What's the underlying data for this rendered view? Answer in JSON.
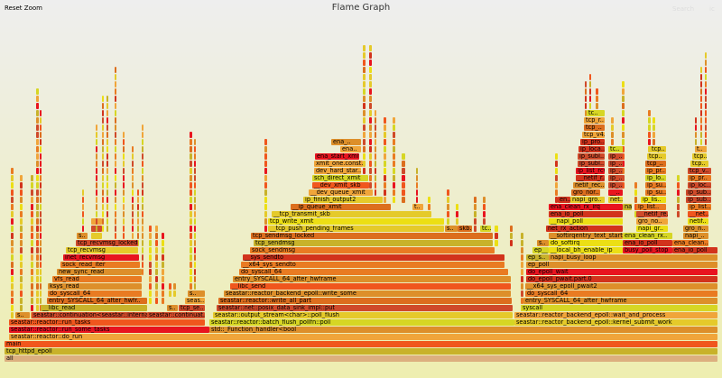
{
  "header": {
    "reset_zoom": "Reset Zoom",
    "title": "Flame Graph",
    "search": "Search",
    "ic": "ic"
  },
  "chart_data": {
    "type": "flamegraph",
    "title": "Flame Graph",
    "total_samples": 790,
    "palette": [
      "#e8141f",
      "#f0561d",
      "#e97b22",
      "#dd8f2a",
      "#f0a53a",
      "#e5ca2a",
      "#ecdf14",
      "#d6d624",
      "#cf4a2a",
      "#d2331c",
      "#dc6e1e",
      "#c8b22a"
    ],
    "frames": [
      [
        0,
        0,
        790,
        "all"
      ],
      [
        1,
        0,
        790,
        "tcp_httpd_epoll"
      ],
      [
        2,
        0,
        790,
        "main"
      ],
      [
        3,
        5,
        790,
        "seastar::reactor::do_run"
      ],
      [
        4,
        5,
        227,
        "seastar::reactor::run_some_tasks"
      ],
      [
        4,
        227,
        790,
        "std::_Function_handler<bool"
      ],
      [
        5,
        5,
        222,
        "seastar::reactor::run_tasks"
      ],
      [
        5,
        227,
        565,
        "seastar::reactor::batch_flush_pollfn::poll"
      ],
      [
        5,
        565,
        790,
        "seastar::reactor_backend_epoll::kernel_submit_work"
      ],
      [
        6,
        12,
        28,
        "s.."
      ],
      [
        6,
        30,
        158,
        "seastar::continuation<seastar::internal..."
      ],
      [
        6,
        158,
        222,
        "seastar::continuat.."
      ],
      [
        6,
        231,
        563,
        "seastar::output_stream<char>::poll_flush"
      ],
      [
        6,
        565,
        790,
        "seastar::reactor_backend_epoll::wait_and_process"
      ],
      [
        7,
        40,
        158,
        "__libc_read"
      ],
      [
        7,
        180,
        192,
        "s.."
      ],
      [
        7,
        193,
        222,
        "tcp_se.."
      ],
      [
        7,
        235,
        563,
        "seastar::net::posix_data_sink_impl::put"
      ],
      [
        7,
        572,
        790,
        "syscall"
      ],
      [
        8,
        47,
        158,
        "entry_SYSCALL_64_after_hwfr.."
      ],
      [
        8,
        200,
        222,
        "seas.."
      ],
      [
        8,
        237,
        562,
        "seastar::reactor::write_all_part"
      ],
      [
        8,
        575,
        790,
        "entry_SYSCALL_64_after_hwframe"
      ],
      [
        9,
        48,
        152,
        "do_syscall_64"
      ],
      [
        9,
        203,
        222,
        "s.."
      ],
      [
        9,
        243,
        561,
        "seastar::reactor_backend_epoll::write_some"
      ],
      [
        9,
        577,
        790,
        "do_syscall_64"
      ],
      [
        10,
        48,
        152,
        "ksys_read"
      ],
      [
        10,
        250,
        561,
        "__libc_send"
      ],
      [
        10,
        577,
        790,
        "__x64_sys_epoll_pwait2"
      ],
      [
        11,
        53,
        152,
        "vfs_read"
      ],
      [
        11,
        253,
        561,
        "entry_SYSCALL_64_after_hwframe"
      ],
      [
        11,
        578,
        790,
        "do_epoll_pwait.part.0"
      ],
      [
        12,
        58,
        152,
        "new_sync_read"
      ],
      [
        12,
        260,
        558,
        "do_syscall_64"
      ],
      [
        12,
        578,
        790,
        "do_epoll_wait"
      ],
      [
        13,
        62,
        150,
        "sock_read_iter"
      ],
      [
        13,
        262,
        554,
        "__x64_sys_sendto"
      ],
      [
        13,
        578,
        790,
        "ep_poll"
      ],
      [
        14,
        65,
        149,
        "inet_recvmsg"
      ],
      [
        14,
        264,
        554,
        "__sys_sendto"
      ],
      [
        14,
        578,
        603,
        "ep_s.."
      ],
      [
        14,
        603,
        790,
        "napi_busy_loop"
      ],
      [
        15,
        68,
        148,
        "tcp_recvmsg"
      ],
      [
        15,
        272,
        543,
        "sock_sendmsg"
      ],
      [
        15,
        585,
        603,
        "ep__"
      ],
      [
        15,
        603,
        685,
        "__local_bh_enable_ip"
      ],
      [
        15,
        685,
        740,
        "busy_poll_stop"
      ],
      [
        15,
        740,
        790,
        "ena_io_poll"
      ],
      [
        16,
        79,
        148,
        "tcp_recvmsg_locked"
      ],
      [
        16,
        276,
        541,
        "tcp_sendmsg"
      ],
      [
        16,
        590,
        603,
        "s.."
      ],
      [
        16,
        603,
        685,
        "do_softirq"
      ],
      [
        16,
        685,
        740,
        "ena_io_poll"
      ],
      [
        16,
        740,
        780,
        "ena_clean.."
      ],
      [
        17,
        80,
        92,
        "s.."
      ],
      [
        17,
        273,
        541,
        "tcp_sendmsg_locked"
      ],
      [
        17,
        603,
        685,
        "__softirqentry_text_start"
      ],
      [
        17,
        685,
        740,
        "ena_clean_rx.."
      ],
      [
        17,
        752,
        780,
        "napi_.."
      ],
      [
        18,
        292,
        487,
        "__tcp_push_pending_frames"
      ],
      [
        18,
        488,
        502,
        "s.."
      ],
      [
        18,
        502,
        518,
        "skb.."
      ],
      [
        18,
        527,
        539,
        "tc.."
      ],
      [
        18,
        600,
        685,
        "net_rx_action"
      ],
      [
        18,
        700,
        735,
        "napi_gr.."
      ],
      [
        18,
        752,
        780,
        "gro_n.."
      ],
      [
        19,
        292,
        487,
        "tcp_write_xmit"
      ],
      [
        19,
        603,
        685,
        "__napi_poll"
      ],
      [
        19,
        700,
        735,
        "gro_no.."
      ],
      [
        19,
        757,
        780,
        "netif.."
      ],
      [
        20,
        296,
        473,
        "__tcp_transmit_skb"
      ],
      [
        20,
        603,
        685,
        "ena_io_poll"
      ],
      [
        20,
        700,
        735,
        "__netif_re.."
      ],
      [
        20,
        757,
        780,
        "__net.."
      ],
      [
        21,
        317,
        428,
        "__ip_queue_xmit"
      ],
      [
        21,
        452,
        464,
        "t.."
      ],
      [
        21,
        603,
        685,
        "ena_clean_rx_irq"
      ],
      [
        21,
        685,
        695,
        "na.."
      ],
      [
        21,
        700,
        733,
        "ip_list.."
      ],
      [
        21,
        757,
        783,
        "ip_list.."
      ],
      [
        22,
        331,
        419,
        "ip_finish_output2"
      ],
      [
        22,
        613,
        627,
        "en.."
      ],
      [
        22,
        627,
        665,
        "napi_gro.."
      ],
      [
        22,
        669,
        685,
        "net.."
      ],
      [
        22,
        705,
        733,
        "ip_lis.."
      ],
      [
        22,
        755,
        783,
        "ip_sub.."
      ],
      [
        23,
        337,
        408,
        "__dev_queue_xmit"
      ],
      [
        23,
        628,
        660,
        "gro_nor.."
      ],
      [
        23,
        669,
        685,
        "__.."
      ],
      [
        23,
        710,
        733,
        "ip_su.."
      ],
      [
        23,
        755,
        783,
        "ip_sub.."
      ],
      [
        24,
        341,
        404,
        "__dev_xmit_skb"
      ],
      [
        24,
        630,
        665,
        "netif_rec.."
      ],
      [
        24,
        669,
        685,
        "ip_.."
      ],
      [
        24,
        710,
        733,
        "ip_su.."
      ],
      [
        24,
        757,
        783,
        "ip_loc.."
      ],
      [
        25,
        341,
        403,
        "sch_direct_xmit"
      ],
      [
        25,
        633,
        665,
        "__netif_r.."
      ],
      [
        25,
        669,
        685,
        "ip_.."
      ],
      [
        25,
        710,
        733,
        "ip_lo.."
      ],
      [
        25,
        757,
        783,
        "ip_pr.."
      ],
      [
        26,
        343,
        395,
        "dev_hard_star.."
      ],
      [
        26,
        633,
        665,
        "ip_list_rcv"
      ],
      [
        26,
        669,
        685,
        "ip_.."
      ],
      [
        26,
        710,
        733,
        "ip_pr.."
      ],
      [
        26,
        757,
        783,
        "tcp_v.."
      ],
      [
        27,
        343,
        397,
        "xmit_one.const.."
      ],
      [
        27,
        635,
        665,
        "ip_subl.."
      ],
      [
        27,
        669,
        685,
        "ip_.."
      ],
      [
        27,
        710,
        733,
        "tcp_.."
      ],
      [
        27,
        760,
        780,
        "tcp.."
      ],
      [
        28,
        344,
        393,
        "ena_start_xmit"
      ],
      [
        28,
        635,
        665,
        "ip_subl.."
      ],
      [
        28,
        669,
        685,
        "ip_.."
      ],
      [
        28,
        712,
        733,
        "tcp.."
      ],
      [
        28,
        762,
        778,
        "tcp.."
      ],
      [
        29,
        372,
        395,
        "ena.."
      ],
      [
        29,
        636,
        665,
        "ip_loca.."
      ],
      [
        29,
        669,
        685,
        "tc.."
      ],
      [
        29,
        715,
        733,
        "tcp.."
      ],
      [
        29,
        765,
        778,
        "t.."
      ],
      [
        30,
        362,
        395,
        "ena_.."
      ],
      [
        30,
        638,
        665,
        "ip_pro.."
      ],
      [
        31,
        640,
        665,
        "tcp_v4.."
      ],
      [
        32,
        642,
        665,
        "tcp_.."
      ],
      [
        33,
        642,
        665,
        "tcp_r.."
      ],
      [
        34,
        645,
        665,
        "tc.."
      ]
    ],
    "minor_stacks": [
      [
        7,
        3,
        6,
        26
      ],
      [
        17,
        3,
        6,
        25
      ],
      [
        29,
        3,
        6,
        25
      ],
      [
        35,
        3,
        6,
        37
      ],
      [
        39,
        2,
        6,
        34
      ],
      [
        86,
        2,
        9,
        23
      ],
      [
        96,
        12,
        14,
        19
      ],
      [
        101,
        2,
        18,
        32
      ],
      [
        108,
        2,
        18,
        36
      ],
      [
        113,
        2,
        18,
        36
      ],
      [
        122,
        2,
        16,
        40
      ],
      [
        131,
        2,
        16,
        31
      ],
      [
        141,
        2,
        16,
        29
      ],
      [
        147,
        2,
        16,
        23
      ],
      [
        152,
        2,
        12,
        32
      ],
      [
        160,
        3,
        8,
        18
      ],
      [
        167,
        3,
        8,
        18
      ],
      [
        174,
        3,
        8,
        17
      ],
      [
        182,
        3,
        9,
        10
      ],
      [
        187,
        3,
        9,
        10
      ],
      [
        205,
        3,
        10,
        31
      ],
      [
        210,
        2,
        9,
        30
      ],
      [
        288,
        3,
        18,
        30
      ],
      [
        397,
        3,
        22,
        43
      ],
      [
        404,
        3,
        22,
        43
      ],
      [
        410,
        2,
        22,
        34
      ],
      [
        420,
        3,
        22,
        33
      ],
      [
        430,
        3,
        22,
        33
      ],
      [
        440,
        4,
        22,
        28
      ],
      [
        456,
        2,
        22,
        26
      ],
      [
        469,
        3,
        19,
        22
      ],
      [
        490,
        3,
        19,
        23
      ],
      [
        500,
        3,
        19,
        21
      ],
      [
        520,
        3,
        18,
        22
      ],
      [
        530,
        3,
        18,
        22
      ],
      [
        543,
        4,
        16,
        18
      ],
      [
        560,
        3,
        16,
        18
      ],
      [
        572,
        3,
        7,
        17
      ],
      [
        610,
        3,
        17,
        28
      ],
      [
        643,
        2,
        34,
        38
      ],
      [
        648,
        2,
        34,
        39
      ],
      [
        655,
        3,
        30,
        37
      ],
      [
        672,
        3,
        29,
        33
      ],
      [
        684,
        3,
        24,
        38
      ],
      [
        698,
        3,
        20,
        24
      ],
      [
        713,
        3,
        29,
        34
      ],
      [
        718,
        3,
        28,
        33
      ],
      [
        729,
        3,
        24,
        28
      ],
      [
        745,
        3,
        20,
        25
      ],
      [
        765,
        2,
        29,
        33
      ],
      [
        771,
        2,
        29,
        40
      ],
      [
        776,
        2,
        29,
        42
      ]
    ]
  }
}
